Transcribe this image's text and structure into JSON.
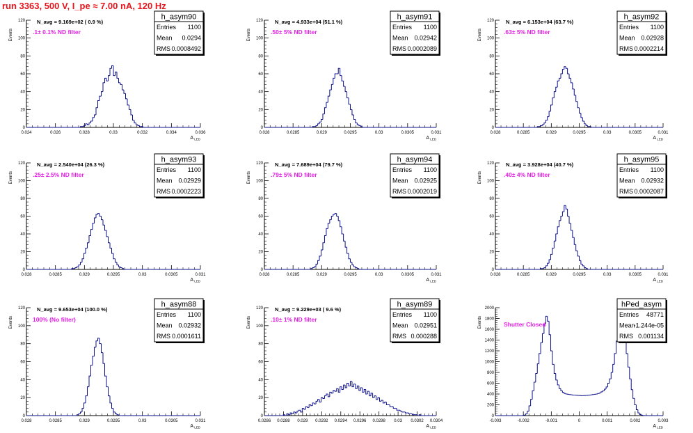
{
  "page": {
    "title": "run 3363,   500 V, I_pe ≈ 7.00 nA, 120 Hz"
  },
  "colors": {
    "title": "#e8141b",
    "histogram_line": "#0b0f8c",
    "annotation": "#e51fe5",
    "axes": "#000000"
  },
  "chart_data": [
    {
      "type": "bar",
      "name": "h_asym90",
      "stats": {
        "entries": "1100",
        "mean": "0.0294",
        "rms": "0.0008492"
      },
      "navg": "N_avg = 9.169e+02 ( 0.9 %)",
      "note": ".1± 0.1% ND filter",
      "xlim": [
        0.024,
        0.036
      ],
      "ylim": [
        0,
        120
      ],
      "xticks": [
        "0.024",
        "0.026",
        "0.028",
        "0.03",
        "0.032",
        "0.034",
        "0.036"
      ],
      "yticks": [
        "0",
        "20",
        "40",
        "60",
        "80",
        "100",
        "120"
      ],
      "xlabel": "A_LED",
      "ylabel": "Events",
      "bins": {
        "nbins": 100,
        "xmin": 0.024,
        "xmax": 0.036
      },
      "values": [
        0,
        0,
        0,
        0,
        0,
        0,
        0,
        0,
        0,
        0,
        0,
        0,
        0,
        0,
        0,
        0,
        0,
        0,
        0,
        0,
        0,
        0,
        0,
        0,
        0,
        0,
        0,
        0,
        0,
        0,
        0,
        1,
        1,
        2,
        4,
        3,
        5,
        7,
        11,
        14,
        22,
        30,
        35,
        40,
        50,
        55,
        52,
        58,
        66,
        69,
        58,
        62,
        55,
        50,
        48,
        42,
        38,
        32,
        25,
        20,
        14,
        8,
        5,
        3,
        2,
        1,
        1,
        0,
        0,
        0,
        0,
        0,
        0,
        0,
        0,
        0,
        0,
        0,
        0,
        0,
        0,
        0,
        0,
        0,
        0,
        0,
        0,
        0,
        0,
        0,
        0,
        0,
        0,
        0,
        0,
        0,
        0,
        0,
        0,
        0
      ]
    },
    {
      "type": "bar",
      "name": "h_asym91",
      "stats": {
        "entries": "1100",
        "mean": "0.02942",
        "rms": "0.0002089"
      },
      "navg": "N_avg = 4.933e+04 (51.1 %)",
      "note": ".50± 5% ND filter",
      "xlim": [
        0.028,
        0.031
      ],
      "ylim": [
        0,
        120
      ],
      "xticks": [
        "0.028",
        "0.0285",
        "0.029",
        "0.0295",
        "0.03",
        "0.0305",
        "0.031"
      ],
      "yticks": [
        "0",
        "20",
        "40",
        "60",
        "80",
        "100",
        "120"
      ],
      "xlabel": "A_LED",
      "ylabel": "Events",
      "bins": {
        "nbins": 100,
        "xmin": 0.028,
        "xmax": 0.031
      },
      "values": [
        0,
        0,
        0,
        0,
        0,
        0,
        0,
        0,
        0,
        0,
        0,
        0,
        0,
        0,
        0,
        0,
        0,
        0,
        0,
        0,
        0,
        0,
        0,
        0,
        0,
        0,
        0,
        0,
        1,
        1,
        2,
        4,
        6,
        9,
        15,
        22,
        28,
        35,
        42,
        48,
        55,
        60,
        60,
        66,
        58,
        52,
        46,
        40,
        33,
        26,
        20,
        14,
        9,
        5,
        3,
        2,
        1,
        0,
        0,
        0,
        0,
        0,
        0,
        0,
        0,
        0,
        0,
        0,
        0,
        0,
        0,
        0,
        0,
        0,
        0,
        0,
        0,
        0,
        0,
        0,
        0,
        0,
        0,
        0,
        0,
        0,
        0,
        0,
        0,
        0,
        0,
        0,
        0,
        0,
        0,
        0,
        0,
        0,
        0,
        0
      ]
    },
    {
      "type": "bar",
      "name": "h_asym92",
      "stats": {
        "entries": "1100",
        "mean": "0.02928",
        "rms": "0.0002214"
      },
      "navg": "N_avg = 6.153e+04 (63.7 %)",
      "note": ".63± 5% ND filter",
      "xlim": [
        0.028,
        0.031
      ],
      "ylim": [
        0,
        120
      ],
      "xticks": [
        "0.028",
        "0.0285",
        "0.029",
        "0.0295",
        "0.03",
        "0.0305",
        "0.031"
      ],
      "yticks": [
        "0",
        "20",
        "40",
        "60",
        "80",
        "100",
        "120"
      ],
      "xlabel": "A_LED",
      "ylabel": "Events",
      "bins": {
        "nbins": 100,
        "xmin": 0.028,
        "xmax": 0.031
      },
      "values": [
        0,
        0,
        0,
        0,
        0,
        0,
        0,
        0,
        0,
        0,
        0,
        0,
        0,
        0,
        0,
        0,
        0,
        0,
        0,
        0,
        0,
        0,
        0,
        0,
        0,
        1,
        1,
        2,
        3,
        5,
        8,
        12,
        18,
        25,
        33,
        40,
        45,
        52,
        55,
        60,
        65,
        68,
        66,
        60,
        55,
        50,
        43,
        36,
        29,
        22,
        16,
        11,
        7,
        4,
        2,
        1,
        1,
        0,
        0,
        0,
        0,
        0,
        0,
        0,
        0,
        0,
        0,
        0,
        0,
        0,
        0,
        0,
        0,
        0,
        0,
        0,
        0,
        0,
        0,
        0,
        0,
        0,
        0,
        0,
        0,
        0,
        0,
        0,
        0,
        0,
        0,
        0,
        0,
        0,
        0,
        0,
        0,
        0,
        0,
        0
      ]
    },
    {
      "type": "bar",
      "name": "h_asym93",
      "stats": {
        "entries": "1100",
        "mean": "0.02929",
        "rms": "0.0002223"
      },
      "navg": "N_avg = 2.540e+04 (26.3 %)",
      "note": ".25± 2.5% ND filter",
      "xlim": [
        0.028,
        0.031
      ],
      "ylim": [
        0,
        120
      ],
      "xticks": [
        "0.028",
        "0.0285",
        "0.029",
        "0.0295",
        "0.03",
        "0.0305",
        "0.031"
      ],
      "yticks": [
        "0",
        "20",
        "40",
        "60",
        "80",
        "100",
        "120"
      ],
      "xlabel": "A_LED",
      "ylabel": "Events",
      "bins": {
        "nbins": 100,
        "xmin": 0.028,
        "xmax": 0.031
      },
      "values": [
        0,
        0,
        0,
        0,
        0,
        0,
        0,
        0,
        0,
        0,
        0,
        0,
        0,
        0,
        0,
        0,
        0,
        0,
        0,
        0,
        0,
        0,
        0,
        0,
        0,
        0,
        1,
        1,
        2,
        3,
        5,
        8,
        12,
        18,
        24,
        30,
        38,
        45,
        52,
        58,
        62,
        63,
        60,
        56,
        50,
        44,
        37,
        30,
        24,
        18,
        12,
        8,
        5,
        3,
        2,
        1,
        0,
        0,
        0,
        0,
        0,
        0,
        0,
        0,
        0,
        0,
        0,
        0,
        0,
        0,
        0,
        0,
        0,
        0,
        0,
        0,
        0,
        0,
        0,
        0,
        0,
        0,
        0,
        0,
        0,
        0,
        0,
        0,
        0,
        0,
        0,
        0,
        0,
        0,
        0,
        0,
        0,
        0,
        0,
        0
      ]
    },
    {
      "type": "bar",
      "name": "h_asym94",
      "stats": {
        "entries": "1100",
        "mean": "0.02925",
        "rms": "0.0002019"
      },
      "navg": "N_avg = 7.689e+04 (79.7 %)",
      "note": ".79± 5% ND filter",
      "xlim": [
        0.028,
        0.031
      ],
      "ylim": [
        0,
        120
      ],
      "xticks": [
        "0.028",
        "0.0285",
        "0.029",
        "0.0295",
        "0.03",
        "0.0305",
        "0.031"
      ],
      "yticks": [
        "0",
        "20",
        "40",
        "60",
        "80",
        "100",
        "120"
      ],
      "xlabel": "A_LED",
      "ylabel": "Events",
      "bins": {
        "nbins": 100,
        "xmin": 0.028,
        "xmax": 0.031
      },
      "values": [
        0,
        0,
        0,
        0,
        0,
        0,
        0,
        0,
        0,
        0,
        0,
        0,
        0,
        0,
        0,
        0,
        0,
        0,
        0,
        0,
        0,
        0,
        0,
        0,
        0,
        0,
        0,
        1,
        2,
        3,
        6,
        10,
        15,
        22,
        30,
        38,
        46,
        52,
        56,
        60,
        62,
        63,
        60,
        55,
        48,
        40,
        32,
        25,
        18,
        12,
        8,
        5,
        3,
        2,
        1,
        0,
        0,
        0,
        0,
        0,
        0,
        0,
        0,
        0,
        0,
        0,
        0,
        0,
        0,
        0,
        0,
        0,
        0,
        0,
        0,
        0,
        0,
        0,
        0,
        0,
        0,
        0,
        0,
        0,
        0,
        0,
        0,
        0,
        0,
        0,
        0,
        0,
        0,
        0,
        0,
        0,
        0,
        0,
        0,
        0
      ]
    },
    {
      "type": "bar",
      "name": "h_asym95",
      "stats": {
        "entries": "1100",
        "mean": "0.02932",
        "rms": "0.0002087"
      },
      "navg": "N_avg = 3.928e+04 (40.7 %)",
      "note": ".40± 4% ND filter",
      "xlim": [
        0.028,
        0.031
      ],
      "ylim": [
        0,
        120
      ],
      "xticks": [
        "0.028",
        "0.0285",
        "0.029",
        "0.0295",
        "0.03",
        "0.0305",
        "0.031"
      ],
      "yticks": [
        "0",
        "20",
        "40",
        "60",
        "80",
        "100",
        "120"
      ],
      "xlabel": "A_LED",
      "ylabel": "Events",
      "bins": {
        "nbins": 100,
        "xmin": 0.028,
        "xmax": 0.031
      },
      "values": [
        0,
        0,
        0,
        0,
        0,
        0,
        0,
        0,
        0,
        0,
        0,
        0,
        0,
        0,
        0,
        0,
        0,
        0,
        0,
        0,
        0,
        0,
        0,
        0,
        0,
        0,
        0,
        1,
        1,
        2,
        4,
        7,
        11,
        17,
        24,
        32,
        40,
        48,
        55,
        60,
        65,
        72,
        68,
        60,
        52,
        44,
        36,
        28,
        21,
        15,
        10,
        6,
        4,
        2,
        1,
        0,
        0,
        0,
        0,
        0,
        0,
        0,
        0,
        0,
        0,
        0,
        0,
        0,
        0,
        0,
        0,
        0,
        0,
        0,
        0,
        0,
        0,
        0,
        0,
        0,
        0,
        0,
        0,
        0,
        0,
        0,
        0,
        0,
        0,
        0,
        0,
        0,
        0,
        0,
        0,
        0,
        0,
        0,
        0,
        0
      ]
    },
    {
      "type": "bar",
      "name": "h_asym88",
      "stats": {
        "entries": "1100",
        "mean": "0.02932",
        "rms": "0.0001611"
      },
      "navg": "N_avg = 9.653e+04 (100.0 %)",
      "note": "100% (No filter)",
      "xlim": [
        0.028,
        0.031
      ],
      "ylim": [
        0,
        120
      ],
      "xticks": [
        "0.028",
        "0.0285",
        "0.029",
        "0.0295",
        "0.03",
        "0.0305",
        "0.031"
      ],
      "yticks": [
        "0",
        "20",
        "40",
        "60",
        "80",
        "100",
        "120"
      ],
      "xlabel": "A_LED",
      "ylabel": "Events",
      "bins": {
        "nbins": 100,
        "xmin": 0.028,
        "xmax": 0.031
      },
      "values": [
        0,
        0,
        0,
        0,
        0,
        0,
        0,
        0,
        0,
        0,
        0,
        0,
        0,
        0,
        0,
        0,
        0,
        0,
        0,
        0,
        0,
        0,
        0,
        0,
        0,
        0,
        0,
        0,
        0,
        1,
        2,
        4,
        8,
        14,
        22,
        32,
        44,
        56,
        66,
        76,
        83,
        86,
        80,
        70,
        58,
        44,
        32,
        22,
        14,
        8,
        4,
        2,
        1,
        0,
        0,
        0,
        0,
        0,
        0,
        0,
        0,
        0,
        0,
        0,
        0,
        0,
        0,
        0,
        0,
        0,
        0,
        0,
        0,
        0,
        0,
        0,
        0,
        0,
        0,
        0,
        0,
        0,
        0,
        0,
        0,
        0,
        0,
        0,
        0,
        0,
        0,
        0,
        0,
        0,
        0,
        0,
        0,
        0,
        0,
        0
      ]
    },
    {
      "type": "bar",
      "name": "h_asym89",
      "stats": {
        "entries": "1100",
        "mean": "0.02951",
        "rms": "0.000288"
      },
      "navg": "N_avg = 9.229e+03 ( 9.6 %)",
      "note": ".10± 1% ND filter",
      "xlim": [
        0.0286,
        0.0304
      ],
      "ylim": [
        0,
        120
      ],
      "xticks": [
        "0.0286",
        "0.0288",
        "0.029",
        "0.0292",
        "0.0294",
        "0.0296",
        "0.0298",
        "0.03",
        "0.0302",
        "0.0304"
      ],
      "yticks": [
        "0",
        "20",
        "40",
        "60",
        "80",
        "100",
        "120"
      ],
      "xlabel": "A_LED",
      "ylabel": "Events",
      "bins": {
        "nbins": 100,
        "xmin": 0.0286,
        "xmax": 0.0304
      },
      "values": [
        0,
        0,
        0,
        0,
        0,
        0,
        0,
        0,
        0,
        0,
        0,
        1,
        0,
        2,
        1,
        3,
        2,
        4,
        3,
        5,
        6,
        4,
        8,
        7,
        10,
        9,
        12,
        11,
        14,
        13,
        16,
        18,
        15,
        20,
        19,
        22,
        24,
        21,
        26,
        25,
        28,
        27,
        30,
        26,
        32,
        29,
        34,
        31,
        36,
        33,
        38,
        32,
        35,
        30,
        33,
        28,
        31,
        26,
        29,
        24,
        27,
        22,
        25,
        20,
        22,
        18,
        20,
        16,
        17,
        14,
        15,
        12,
        12,
        10,
        10,
        8,
        8,
        6,
        6,
        5,
        4,
        4,
        3,
        3,
        2,
        2,
        1,
        1,
        1,
        0,
        1,
        0,
        0,
        0,
        0,
        0,
        0,
        0,
        0,
        0
      ]
    },
    {
      "type": "bar",
      "name": "hPed_asym",
      "stats": {
        "entries": "48771",
        "mean": "-1.244e-05",
        "rms": "0.001134"
      },
      "navg": "",
      "note": "Shutter Closed",
      "xlim": [
        -0.003,
        0.003
      ],
      "ylim": [
        0,
        2000
      ],
      "xticks": [
        "-0.003",
        "-0.002",
        "-0.001",
        "0",
        "0.001",
        "0.002",
        "0.003"
      ],
      "yticks": [
        "0",
        "200",
        "400",
        "600",
        "800",
        "1000",
        "1200",
        "1400",
        "1600",
        "1800",
        "2000"
      ],
      "xlabel": "A_LED",
      "ylabel": "Events",
      "bins": {
        "nbins": 100,
        "xmin": -0.003,
        "xmax": 0.003
      },
      "values": [
        0,
        0,
        0,
        0,
        0,
        0,
        0,
        0,
        0,
        0,
        0,
        0,
        0,
        0,
        0,
        0,
        2,
        10,
        30,
        80,
        180,
        300,
        460,
        620,
        780,
        960,
        1150,
        1350,
        1520,
        1700,
        1840,
        1750,
        1500,
        1200,
        950,
        780,
        660,
        570,
        500,
        460,
        430,
        410,
        400,
        395,
        390,
        385,
        380,
        380,
        378,
        375,
        372,
        370,
        370,
        372,
        375,
        378,
        380,
        385,
        390,
        395,
        400,
        410,
        420,
        440,
        460,
        490,
        530,
        600,
        680,
        800,
        950,
        1150,
        1380,
        1600,
        1780,
        1860,
        1700,
        1450,
        1150,
        900,
        680,
        480,
        320,
        200,
        110,
        50,
        20,
        8,
        2,
        0,
        0,
        0,
        0,
        0,
        0,
        0,
        0,
        0,
        0,
        0
      ]
    }
  ]
}
